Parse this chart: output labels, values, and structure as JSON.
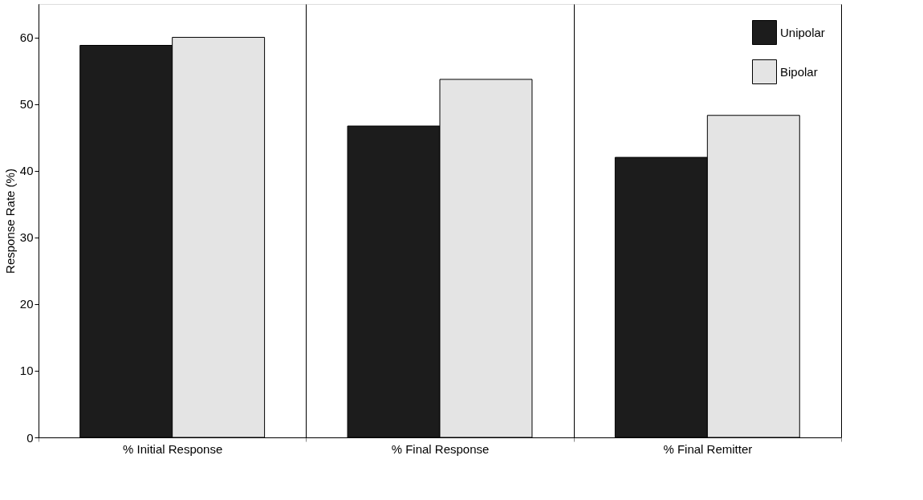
{
  "chart_data": {
    "type": "bar",
    "ylabel": "Response Rate (%)",
    "categories": [
      "% Initial Response",
      "% Final Response",
      "% Final Remitter"
    ],
    "series": [
      {
        "name": "Unipolar",
        "color": "#1c1c1c",
        "values": [
          58.8,
          46.7,
          42
        ]
      },
      {
        "name": "Bipolar",
        "color": "#e4e4e4",
        "values": [
          60,
          53.7,
          48.3
        ]
      }
    ],
    "ylim": [
      0,
      65
    ],
    "yticks": [
      0,
      10,
      20,
      30,
      40,
      50,
      60
    ],
    "grid": "x",
    "legend": "top right"
  }
}
